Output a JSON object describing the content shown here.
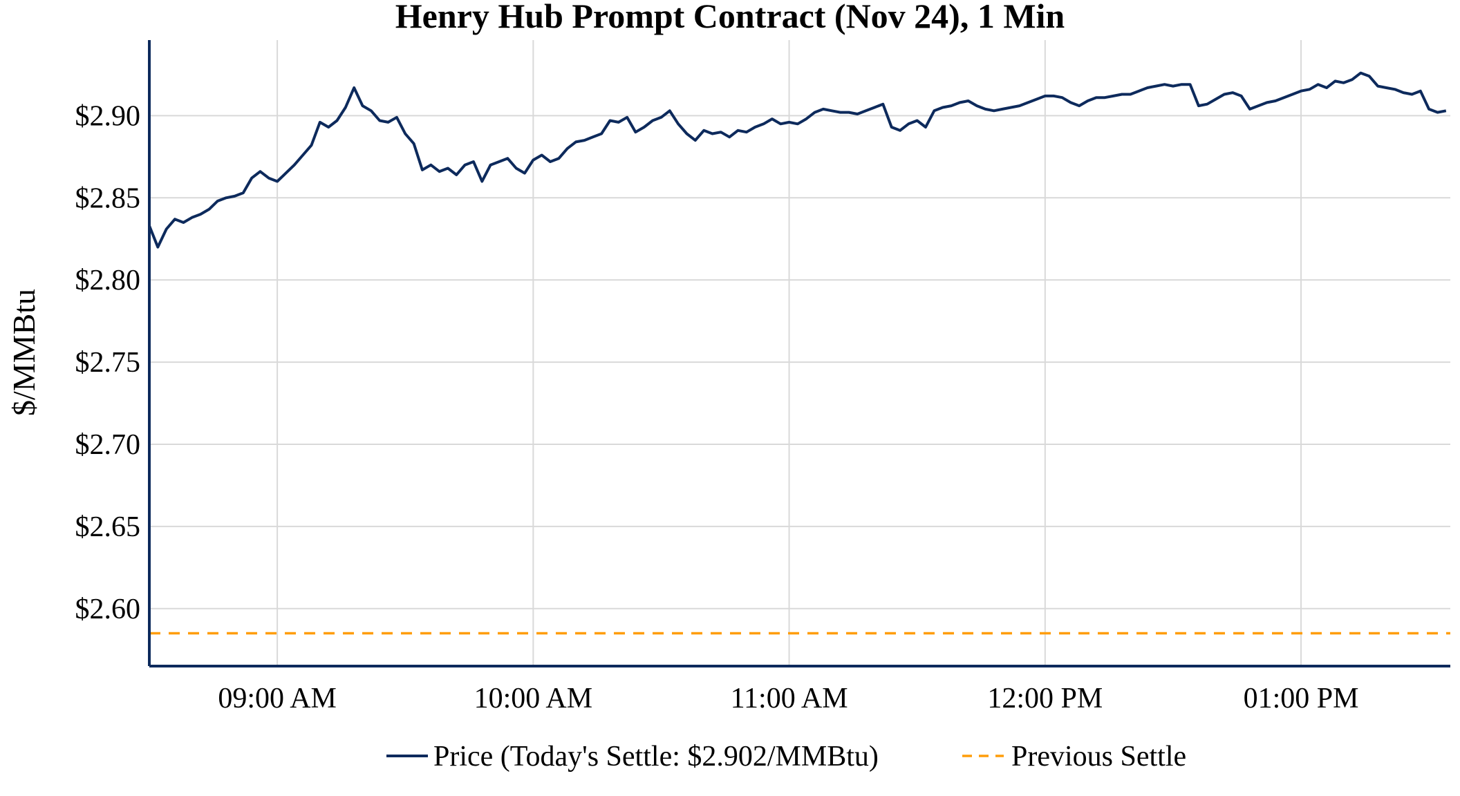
{
  "chart_data": {
    "type": "line",
    "title": "Henry Hub Prompt Contract (Nov 24), 1 Min",
    "xlabel": "",
    "ylabel": "$/MMBtu",
    "x_ticks": [
      "09:00 AM",
      "10:00 AM",
      "11:00 AM",
      "12:00 PM",
      "01:00 PM"
    ],
    "x_tick_values": [
      540,
      600,
      660,
      720,
      780
    ],
    "xlim": [
      510,
      815
    ],
    "y_ticks": [
      "$2.60",
      "$2.65",
      "$2.70",
      "$2.75",
      "$2.80",
      "$2.85",
      "$2.90"
    ],
    "y_tick_values": [
      2.6,
      2.65,
      2.7,
      2.75,
      2.8,
      2.85,
      2.9
    ],
    "ylim": [
      2.565,
      2.946
    ],
    "grid": true,
    "legend_position": "bottom-center",
    "series": [
      {
        "name": "Price (Today's Settle: $2.902/MMBtu)",
        "style": "solid",
        "color": "#0d2a5c",
        "x_minutes_since_midnight": [
          510,
          512,
          514,
          516,
          518,
          520,
          522,
          524,
          526,
          528,
          530,
          532,
          534,
          536,
          538,
          540,
          542,
          544,
          546,
          548,
          550,
          552,
          554,
          556,
          558,
          560,
          562,
          564,
          566,
          568,
          570,
          572,
          574,
          576,
          578,
          580,
          582,
          584,
          586,
          588,
          590,
          592,
          594,
          596,
          598,
          600,
          602,
          604,
          606,
          608,
          610,
          612,
          614,
          616,
          618,
          620,
          622,
          624,
          626,
          628,
          630,
          632,
          634,
          636,
          638,
          640,
          642,
          644,
          646,
          648,
          650,
          652,
          654,
          656,
          658,
          660,
          662,
          664,
          666,
          668,
          670,
          672,
          674,
          676,
          678,
          680,
          682,
          684,
          686,
          688,
          690,
          692,
          694,
          696,
          698,
          700,
          702,
          704,
          706,
          708,
          710,
          712,
          714,
          716,
          718,
          720,
          722,
          724,
          726,
          728,
          730,
          732,
          734,
          736,
          738,
          740,
          742,
          744,
          746,
          748,
          750,
          752,
          754,
          756,
          758,
          760,
          762,
          764,
          766,
          768,
          770,
          772,
          774,
          776,
          778,
          780,
          782,
          784,
          786,
          788,
          790,
          792,
          794,
          796,
          798,
          800,
          802,
          804,
          806,
          808,
          810,
          812,
          814
        ],
        "values": [
          2.833,
          2.82,
          2.831,
          2.837,
          2.835,
          2.838,
          2.84,
          2.843,
          2.848,
          2.85,
          2.851,
          2.853,
          2.862,
          2.866,
          2.862,
          2.86,
          2.865,
          2.87,
          2.876,
          2.882,
          2.896,
          2.893,
          2.897,
          2.905,
          2.917,
          2.906,
          2.903,
          2.897,
          2.896,
          2.899,
          2.889,
          2.883,
          2.867,
          2.87,
          2.866,
          2.868,
          2.864,
          2.87,
          2.872,
          2.86,
          2.87,
          2.872,
          2.874,
          2.868,
          2.865,
          2.873,
          2.876,
          2.872,
          2.874,
          2.88,
          2.884,
          2.885,
          2.887,
          2.889,
          2.897,
          2.896,
          2.899,
          2.89,
          2.893,
          2.897,
          2.899,
          2.903,
          2.895,
          2.889,
          2.885,
          2.891,
          2.889,
          2.89,
          2.887,
          2.891,
          2.89,
          2.893,
          2.895,
          2.898,
          2.895,
          2.896,
          2.895,
          2.898,
          2.902,
          2.904,
          2.903,
          2.902,
          2.902,
          2.901,
          2.903,
          2.905,
          2.907,
          2.893,
          2.891,
          2.895,
          2.897,
          2.893,
          2.903,
          2.905,
          2.906,
          2.908,
          2.909,
          2.906,
          2.904,
          2.903,
          2.904,
          2.905,
          2.906,
          2.908,
          2.91,
          2.912,
          2.912,
          2.911,
          2.908,
          2.906,
          2.909,
          2.911,
          2.911,
          2.912,
          2.913,
          2.913,
          2.915,
          2.917,
          2.918,
          2.919,
          2.918,
          2.919,
          2.919,
          2.906,
          2.907,
          2.91,
          2.913,
          2.914,
          2.912,
          2.904,
          2.906,
          2.908,
          2.909,
          2.911,
          2.913,
          2.915,
          2.916,
          2.919,
          2.917,
          2.921,
          2.92,
          2.922,
          2.926,
          2.924,
          2.918,
          2.917,
          2.916,
          2.914,
          2.913,
          2.915,
          2.904,
          2.902,
          2.903,
          2.904,
          2.904
        ]
      },
      {
        "name": "Previous Settle",
        "style": "dashed",
        "color": "#ff9d0a",
        "value": 2.585
      }
    ]
  }
}
